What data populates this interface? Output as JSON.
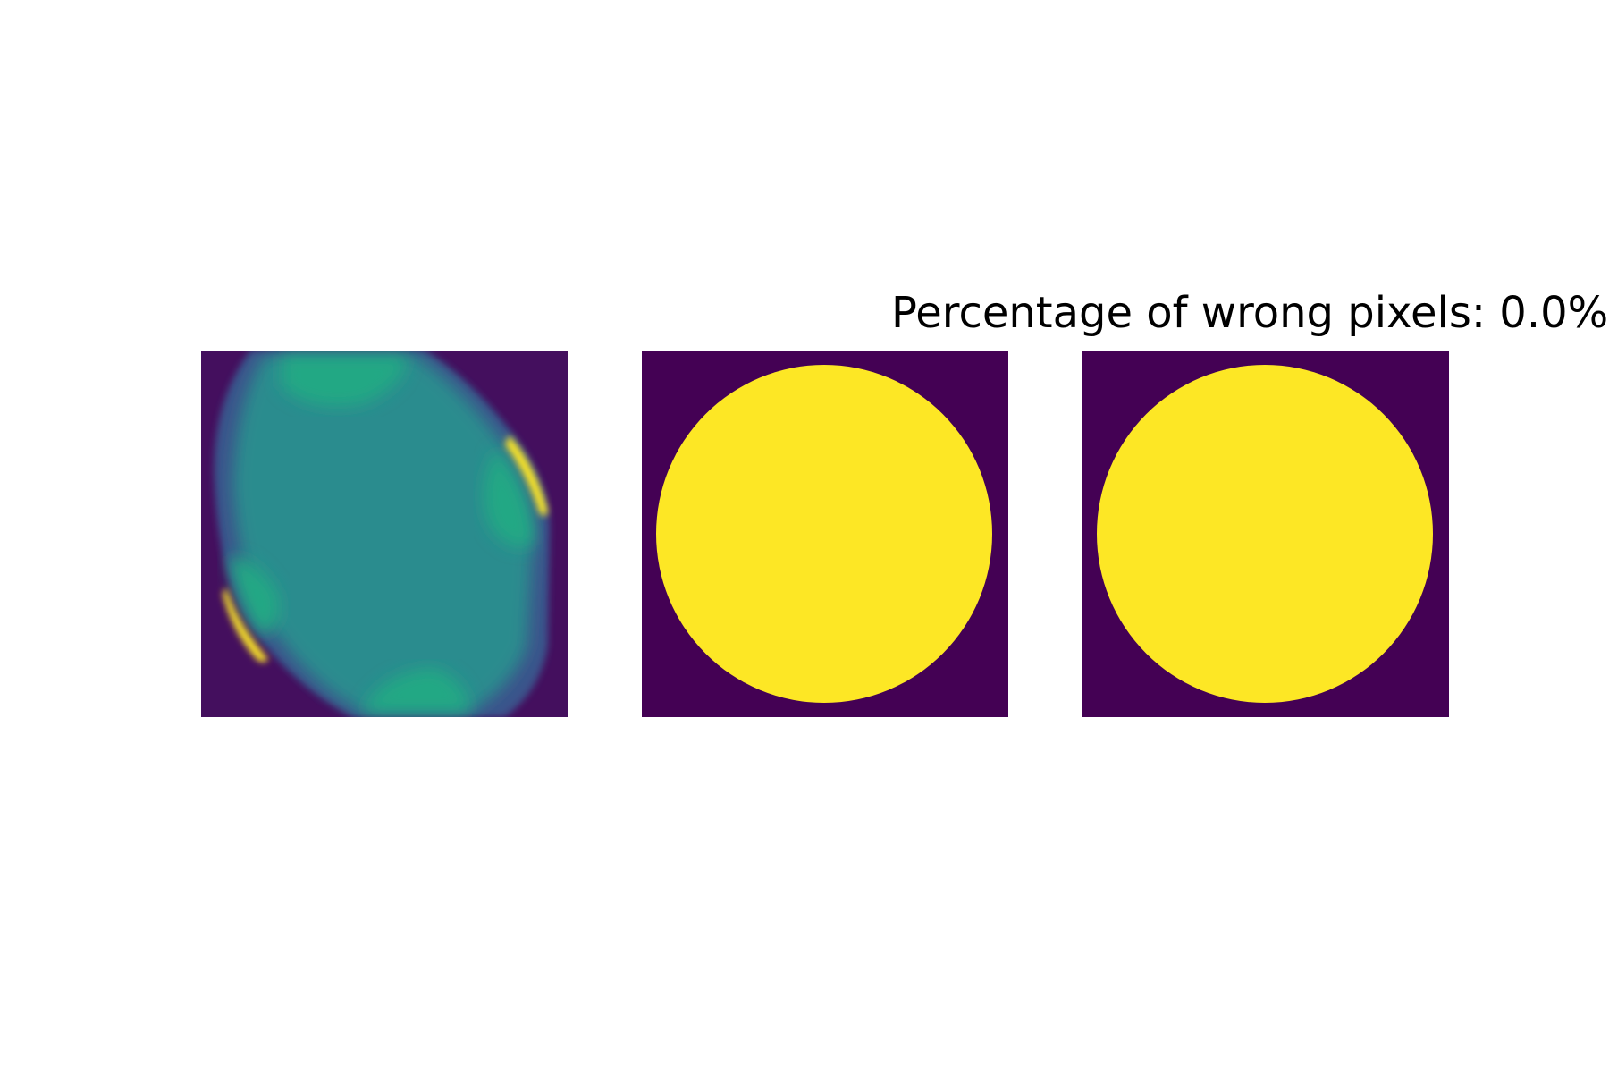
{
  "chart_data": {
    "type": "heatmap",
    "title": "Percentage of wrong pixels: 0.0%",
    "xlabel": "",
    "ylabel": "",
    "colormap": "viridis",
    "panels": [
      {
        "name": "",
        "kind": "continuous-field",
        "colors": {
          "background": "#440f5e",
          "low": "#3b528b",
          "mid": "#2a8c8e",
          "high": "#22a884",
          "peak": "#fde725"
        }
      },
      {
        "name": "",
        "kind": "binary-mask",
        "shape": "disk",
        "colors": {
          "outside": "#440154",
          "inside": "#fde725"
        }
      },
      {
        "name": "",
        "kind": "binary-mask",
        "shape": "disk",
        "colors": {
          "outside": "#440154",
          "inside": "#fde725"
        }
      }
    ],
    "wrong_pixel_percentage": 0.0,
    "axes_visible": false,
    "grid": false,
    "legend": "none"
  }
}
